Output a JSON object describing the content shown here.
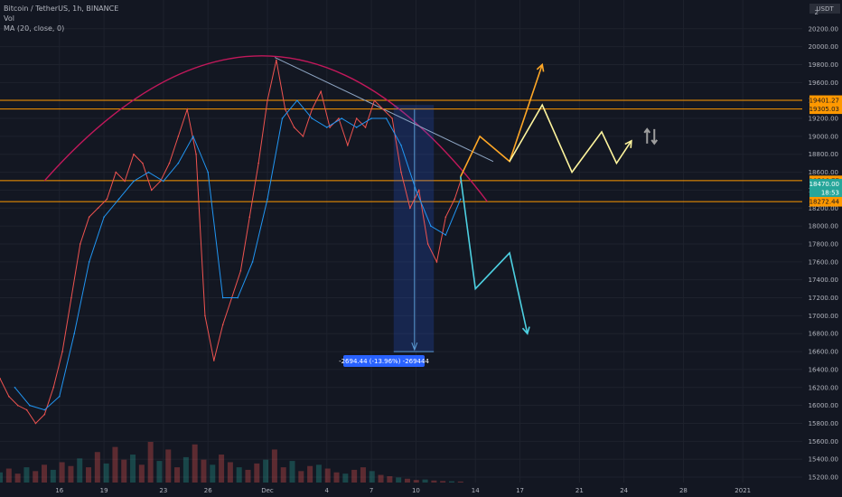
{
  "legend": {
    "symbol_line": "Bitcoin / TetherUS, 1h, BINANCE",
    "volume_label": "Vol",
    "ma_label": "MA (20, close, 0)"
  },
  "axis": {
    "currency": "USDT",
    "top_price_label": "2",
    "price_ticks": [
      15200,
      15400,
      15600,
      15800,
      16000,
      16200,
      16400,
      16600,
      16800,
      17000,
      17200,
      17400,
      17600,
      17800,
      18000,
      18200,
      18400,
      18600,
      18800,
      19000,
      19200,
      19400,
      19600,
      19800,
      20000,
      20200
    ],
    "price_range": [
      15140,
      20520
    ],
    "date_ticks": [
      {
        "label": "16",
        "day": 16
      },
      {
        "label": "19",
        "day": 19
      },
      {
        "label": "23",
        "day": 23
      },
      {
        "label": "26",
        "day": 26
      },
      {
        "label": "Dec",
        "day": 30
      },
      {
        "label": "4",
        "day": 34
      },
      {
        "label": "7",
        "day": 37
      },
      {
        "label": "10",
        "day": 40
      },
      {
        "label": "14",
        "day": 44
      },
      {
        "label": "17",
        "day": 47
      },
      {
        "label": "21",
        "day": 51
      },
      {
        "label": "24",
        "day": 54
      },
      {
        "label": "28",
        "day": 58
      },
      {
        "label": "2021",
        "day": 62
      }
    ]
  },
  "chart_data": {
    "type": "line",
    "title": "Bitcoin / TetherUS, 1h, BINANCE",
    "series": [
      {
        "name": "Bitcoin / TetherUS",
        "x": [
          12.0,
          12.6,
          13.2,
          13.8,
          14.4,
          15.0,
          15.6,
          16.2,
          16.8,
          17.4,
          18.0,
          18.6,
          19.2,
          19.8,
          20.4,
          21.0,
          21.6,
          22.2,
          22.8,
          23.4,
          24.0,
          24.6,
          25.2,
          25.8,
          26.4,
          27.0,
          27.6,
          28.2,
          28.8,
          29.4,
          30.0,
          30.6,
          31.2,
          31.8,
          32.4,
          33.0,
          33.6,
          34.2,
          34.8,
          35.4,
          36.0,
          36.6,
          37.2,
          37.8,
          38.4,
          39.0,
          39.6,
          40.2,
          40.8,
          41.4,
          42.0,
          42.6,
          43.0
        ],
        "values": [
          16300,
          16100,
          16000,
          15950,
          15800,
          15900,
          16200,
          16600,
          17200,
          17800,
          18100,
          18200,
          18300,
          18600,
          18500,
          18800,
          18700,
          18400,
          18500,
          18700,
          19000,
          19300,
          18800,
          17000,
          16500,
          16900,
          17200,
          17500,
          18100,
          18700,
          19400,
          19850,
          19300,
          19100,
          19000,
          19300,
          19500,
          19100,
          19200,
          18900,
          19200,
          19100,
          19400,
          19300,
          19200,
          18600,
          18200,
          18400,
          17800,
          17600,
          18100,
          18300,
          18500
        ]
      },
      {
        "name": "MA (20, close, 0)",
        "x": [
          13.0,
          14.0,
          15.0,
          16.0,
          17.0,
          18.0,
          19.0,
          20.0,
          21.0,
          22.0,
          23.0,
          24.0,
          25.0,
          26.0,
          27.0,
          28.0,
          29.0,
          30.0,
          31.0,
          32.0,
          33.0,
          34.0,
          35.0,
          36.0,
          37.0,
          38.0,
          39.0,
          40.0,
          41.0,
          42.0,
          43.0
        ],
        "values": [
          16200,
          16000,
          15950,
          16100,
          16800,
          17600,
          18100,
          18300,
          18500,
          18600,
          18500,
          18700,
          19000,
          18600,
          17200,
          17200,
          17600,
          18300,
          19200,
          19400,
          19200,
          19100,
          19200,
          19100,
          19200,
          19200,
          18900,
          18400,
          18000,
          17900,
          18300
        ]
      }
    ],
    "volume_values": [
      40,
      55,
      35,
      60,
      45,
      70,
      50,
      80,
      65,
      95,
      60,
      120,
      75,
      140,
      90,
      110,
      70,
      160,
      85,
      130,
      60,
      100,
      150,
      90,
      70,
      110,
      80,
      60,
      50,
      75,
      90,
      130,
      60,
      85,
      45,
      65,
      70,
      55,
      40,
      35,
      50,
      60,
      45,
      30,
      25,
      20,
      15,
      10,
      12,
      8,
      6,
      5,
      4
    ],
    "xlim": [
      12,
      66
    ],
    "ylim": [
      15140,
      20520
    ]
  },
  "drawings": {
    "horizontal_levels": [
      {
        "price": 19401.27,
        "label": "19401.27"
      },
      {
        "price": 19305.03,
        "label": "19305.03"
      },
      {
        "price": 18506.77,
        "label": "18506.77"
      },
      {
        "price": 18272.44,
        "label": "18272.44"
      }
    ],
    "current_price": {
      "price": 18470.0,
      "label": "18470.00",
      "countdown": "18:53"
    },
    "measure_label": "-2694.44 (-13.96%) -269444",
    "arc_color": "#c2185b",
    "level_color": "#ff9800",
    "up_path_color": "#ffa726",
    "neutral_path_color": "#fff59d",
    "down_path_color": "#4dd0e1",
    "trendline_color": "#8fa6c4",
    "measure_color": "#2962ff",
    "current_color": "#26a69a",
    "scenario_icon": "up-down-arrows-icon"
  }
}
